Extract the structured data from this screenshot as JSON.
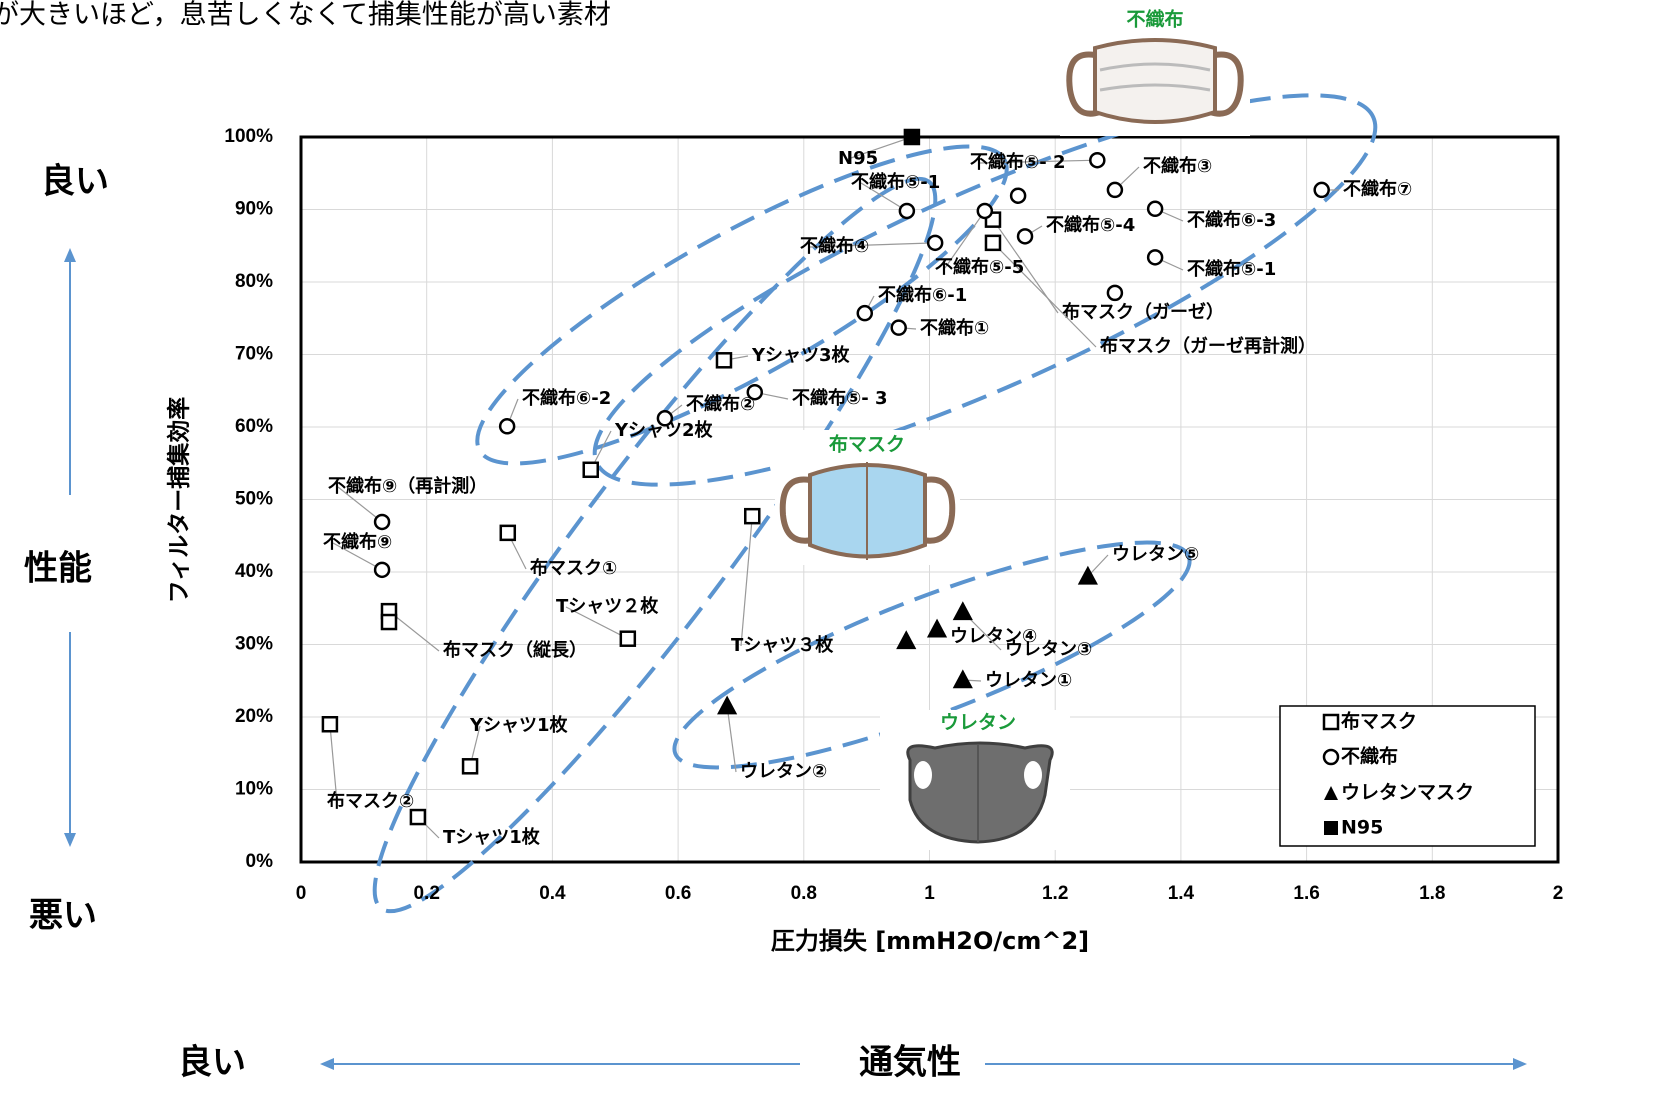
{
  "header_text": "が大きいほど，息苦しくなくて捕集性能が高い素材",
  "side_labels": {
    "top_good": "良い",
    "performance": "性能",
    "bottom_bad": "悪い",
    "left_good": "良い",
    "breathability": "通気性"
  },
  "illustrations": {
    "nonwoven": "不織布",
    "cloth": "布マスク",
    "urethane": "ウレタン"
  },
  "chart_data": {
    "type": "scatter",
    "xlabel": "圧力損失 [mmH2O/cm^2]",
    "ylabel": "フィルター捕集効率",
    "xlim": [
      0,
      2
    ],
    "ylim": [
      0,
      100
    ],
    "xticks": [
      0,
      0.2,
      0.4,
      0.6,
      0.8,
      1,
      1.2,
      1.4,
      1.6,
      1.8,
      2
    ],
    "yticks": [
      {
        "value": 0,
        "label": "0%"
      },
      {
        "value": 10,
        "label": "10%"
      },
      {
        "value": 20,
        "label": "20%"
      },
      {
        "value": 30,
        "label": "30%"
      },
      {
        "value": 40,
        "label": "40%"
      },
      {
        "value": 50,
        "label": "50%"
      },
      {
        "value": 60,
        "label": "60%"
      },
      {
        "value": 70,
        "label": "70%"
      },
      {
        "value": 80,
        "label": "80%"
      },
      {
        "value": 90,
        "label": "90%"
      },
      {
        "value": 100,
        "label": "100%"
      }
    ],
    "grid": true,
    "legend": "lower right",
    "series": [
      {
        "name": "布マスク",
        "marker": "square",
        "filled": false,
        "color": "#000000",
        "x": [
          0.461,
          0.329,
          0.14,
          0.14,
          0.046,
          0.186,
          0.269,
          0.52,
          0.718,
          0.673,
          1.101,
          1.101
        ],
        "y": [
          54.1,
          45.4,
          34.6,
          33.1,
          19.0,
          6.2,
          13.2,
          30.8,
          47.7,
          69.2,
          88.6,
          85.4
        ],
        "labels": [
          "Yシャツ2枚",
          "布マスク①",
          "布マスク（縦長）",
          null,
          "布マスク②",
          "Tシャツ1枚",
          "Yシャツ1枚",
          "Tシャツ２枚",
          "Tシャツ３枚",
          "Yシャツ3枚",
          "布マスク（ガーゼ）",
          "布マスク（ガーゼ再計測）"
        ]
      },
      {
        "name": "不織布",
        "marker": "circle",
        "filled": false,
        "color": "#000000",
        "x": [
          0.328,
          0.579,
          0.722,
          0.897,
          0.951,
          0.964,
          1.009,
          1.088,
          1.141,
          1.152,
          1.267,
          1.295,
          1.359,
          1.359,
          1.295,
          1.624,
          0.129,
          0.129
        ],
        "y": [
          60.1,
          61.2,
          64.8,
          75.7,
          73.7,
          89.8,
          85.4,
          89.8,
          91.9,
          86.3,
          96.8,
          92.7,
          90.1,
          83.4,
          78.5,
          92.7,
          46.9,
          40.3
        ],
        "labels": [
          "不織布⑥-2",
          "不織布②",
          "不織布⑤- 3",
          "不織布⑥-1",
          "不織布①",
          "不織布⑤-1",
          "不織布④",
          "不織布⑤-5",
          null,
          "不織布⑤-4",
          "不織布⑤- 2",
          "不織布③",
          "不織布⑥-3",
          "不織布⑤-1",
          null,
          "不織布⑦",
          "不織布⑨（再計測）",
          "不織布⑨"
        ]
      },
      {
        "name": "ウレタンマスク",
        "marker": "triangle",
        "filled": true,
        "color": "#000000",
        "x": [
          0.678,
          0.963,
          1.012,
          1.053,
          1.053,
          1.252
        ],
        "y": [
          21.5,
          30.5,
          32.1,
          34.5,
          25.1,
          39.4
        ],
        "labels": [
          "ウレタン②",
          null,
          "ウレタン④",
          "ウレタン③",
          "ウレタン①",
          "ウレタン⑤"
        ]
      },
      {
        "name": "N95",
        "marker": "square",
        "filled": true,
        "color": "#000000",
        "x": [
          0.972
        ],
        "y": [
          100
        ],
        "labels": [
          "N95"
        ]
      }
    ]
  }
}
